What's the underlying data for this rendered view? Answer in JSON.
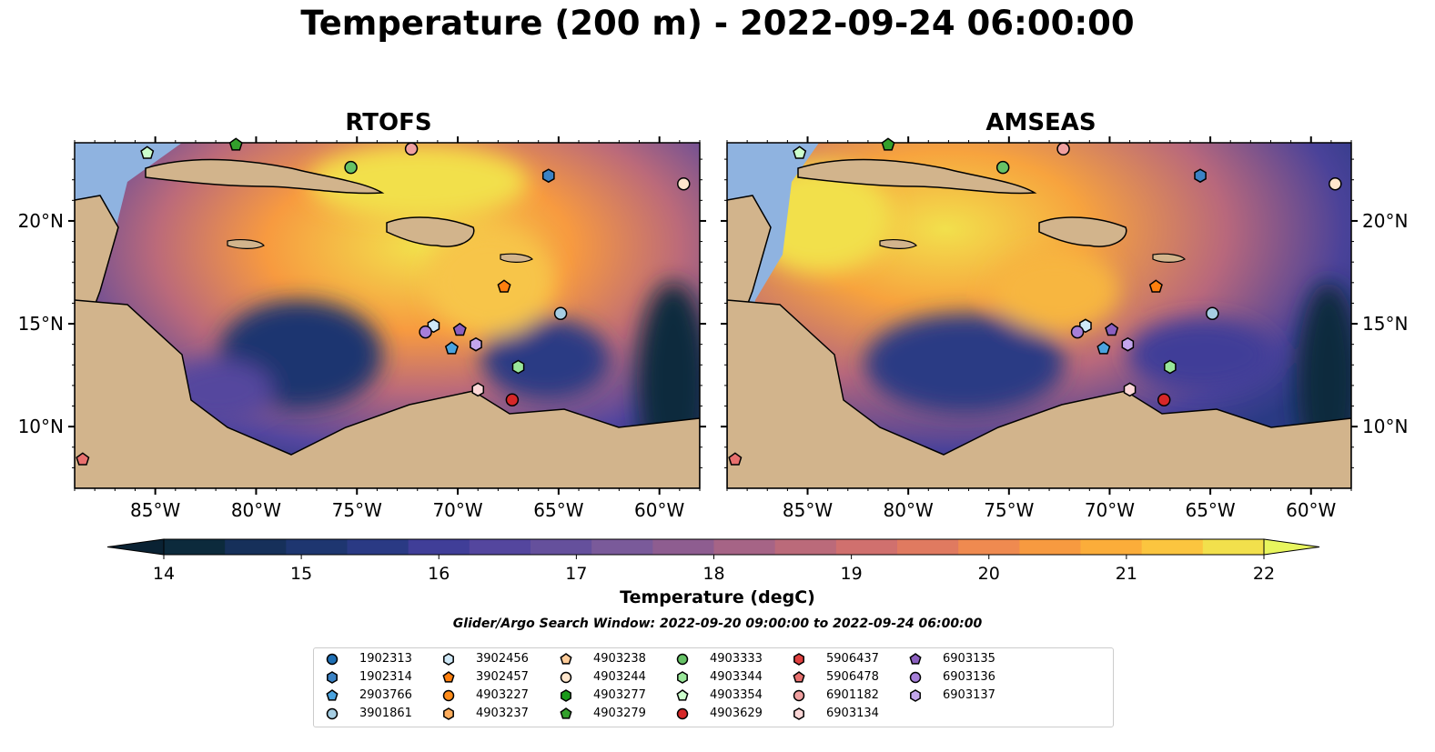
{
  "title": "Temperature (200 m) - 2022-09-24 06:00:00",
  "panels": [
    {
      "id": "rtofs",
      "title": "RTOFS"
    },
    {
      "id": "amseas",
      "title": "AMSEAS"
    }
  ],
  "map": {
    "lon_range": [
      -89,
      -58
    ],
    "lat_range": [
      7,
      23.8
    ],
    "x_ticks": [
      "85°W",
      "80°W",
      "75°W",
      "70°W",
      "65°W",
      "60°W"
    ],
    "y_ticks": [
      "20°N",
      "15°N",
      "10°N"
    ],
    "colors": {
      "land": "#d2b48c",
      "shallow": "#8fb3e0",
      "deep": "#0a2233"
    }
  },
  "colorbar": {
    "label": "Temperature (degC)",
    "min": 14,
    "max": 22,
    "step": 0.5,
    "ticks": [
      "14",
      "15",
      "16",
      "17",
      "18",
      "19",
      "20",
      "21",
      "22"
    ],
    "colors": [
      "#0c2a3c",
      "#16305a",
      "#1e3670",
      "#2a3a84",
      "#403e98",
      "#54469e",
      "#65509c",
      "#7a5a9a",
      "#8e5d90",
      "#a66486",
      "#bb6a7a",
      "#d0706e",
      "#e07a60",
      "#ef8a50",
      "#f79a40",
      "#fbad3a",
      "#fbc53f",
      "#f2e04c"
    ],
    "extend_low": "#0a2233",
    "extend_high": "#e8f55e"
  },
  "search_window": "Glider/Argo Search Window: 2022-09-20 09:00:00 to 2022-09-24 06:00:00",
  "legend": [
    {
      "id": "1902313",
      "shape": "circle",
      "color": "#1f6fb4"
    },
    {
      "id": "1902314",
      "shape": "hexagon",
      "color": "#3b82c4"
    },
    {
      "id": "2903766",
      "shape": "pentagon",
      "color": "#4aa3df"
    },
    {
      "id": "3901861",
      "shape": "circle",
      "color": "#a6cee3"
    },
    {
      "id": "3902456",
      "shape": "hexagon",
      "color": "#cfe8f7"
    },
    {
      "id": "3902457",
      "shape": "pentagon",
      "color": "#ff7f0e"
    },
    {
      "id": "4903227",
      "shape": "circle",
      "color": "#ff8c1a"
    },
    {
      "id": "4903237",
      "shape": "hexagon",
      "color": "#ffad5c"
    },
    {
      "id": "4903238",
      "shape": "pentagon",
      "color": "#ffcc99"
    },
    {
      "id": "4903244",
      "shape": "circle",
      "color": "#ffe6cc"
    },
    {
      "id": "4903277",
      "shape": "hexagon",
      "color": "#1a9a1a"
    },
    {
      "id": "4903279",
      "shape": "pentagon",
      "color": "#33a02c"
    },
    {
      "id": "4903333",
      "shape": "circle",
      "color": "#66c266"
    },
    {
      "id": "4903344",
      "shape": "hexagon",
      "color": "#99e699"
    },
    {
      "id": "4903354",
      "shape": "pentagon",
      "color": "#ccffcc"
    },
    {
      "id": "4903629",
      "shape": "circle",
      "color": "#d62728"
    },
    {
      "id": "5906437",
      "shape": "hexagon",
      "color": "#e0403f"
    },
    {
      "id": "5906478",
      "shape": "pentagon",
      "color": "#e8706e"
    },
    {
      "id": "6901182",
      "shape": "circle",
      "color": "#f0a0a0"
    },
    {
      "id": "6903134",
      "shape": "hexagon",
      "color": "#fcd7d7"
    },
    {
      "id": "6903135",
      "shape": "pentagon",
      "color": "#8b5fbf"
    },
    {
      "id": "6903136",
      "shape": "circle",
      "color": "#a67fd9"
    },
    {
      "id": "6903137",
      "shape": "hexagon",
      "color": "#c3a6ec"
    }
  ],
  "platforms": [
    {
      "id": "4903354",
      "lon": -85.4,
      "lat": 23.3
    },
    {
      "id": "4903279",
      "lon": -81.0,
      "lat": 23.7
    },
    {
      "id": "4903333",
      "lon": -75.3,
      "lat": 22.6
    },
    {
      "id": "6901182",
      "lon": -72.3,
      "lat": 23.5
    },
    {
      "id": "1902314",
      "lon": -65.5,
      "lat": 22.2
    },
    {
      "id": "4903244",
      "lon": -58.8,
      "lat": 21.8
    },
    {
      "id": "3902457",
      "lon": -67.7,
      "lat": 16.8
    },
    {
      "id": "3901861",
      "lon": -64.9,
      "lat": 15.5
    },
    {
      "id": "3902456",
      "lon": -71.2,
      "lat": 14.9
    },
    {
      "id": "6903136",
      "lon": -71.6,
      "lat": 14.6
    },
    {
      "id": "6903135",
      "lon": -69.9,
      "lat": 14.7
    },
    {
      "id": "6903137",
      "lon": -69.1,
      "lat": 14.0
    },
    {
      "id": "2903766",
      "lon": -70.3,
      "lat": 13.8
    },
    {
      "id": "4903344",
      "lon": -67.0,
      "lat": 12.9
    },
    {
      "id": "6903134",
      "lon": -69.0,
      "lat": 11.8
    },
    {
      "id": "4903629",
      "lon": -67.3,
      "lat": 11.3
    },
    {
      "id": "5906478",
      "lon": -88.6,
      "lat": 8.4
    }
  ]
}
